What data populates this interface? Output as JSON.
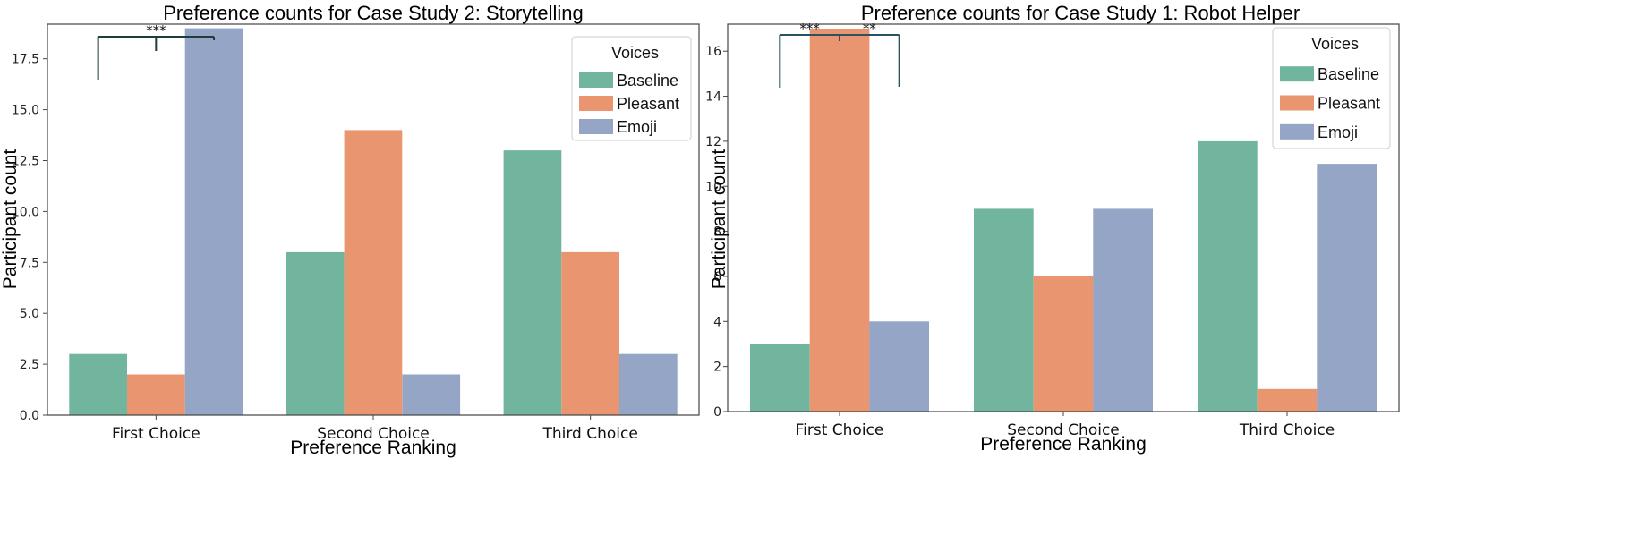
{
  "chart_data": [
    {
      "type": "bar",
      "title": "Preference counts for Case Study 2: Storytelling",
      "xlabel": "Preference Ranking",
      "ylabel": "Participant count",
      "categories": [
        "First Choice",
        "Second Choice",
        "Third Choice"
      ],
      "series": [
        {
          "name": "Baseline",
          "values": [
            3,
            8,
            13
          ],
          "color": "#72b59f"
        },
        {
          "name": "Pleasant",
          "values": [
            2,
            14,
            8
          ],
          "color": "#e9956f"
        },
        {
          "name": "Emoji",
          "values": [
            19,
            2,
            3
          ],
          "color": "#95a5c6"
        }
      ],
      "ylim": [
        0,
        19.2
      ],
      "yticks": [
        "0.0",
        "2.5",
        "5.0",
        "7.5",
        "10.0",
        "12.5",
        "15.0",
        "17.5"
      ],
      "legend": {
        "title": "Voices",
        "placement": "top-right"
      },
      "grid": false,
      "annotations": [
        {
          "text": "***",
          "between": [
            "Baseline",
            "Emoji"
          ],
          "category": "First Choice"
        }
      ]
    },
    {
      "type": "bar",
      "title": "Preference counts for Case Study 1: Robot Helper",
      "xlabel": "Preference Ranking",
      "ylabel": "Participant count",
      "categories": [
        "First Choice",
        "Second Choice",
        "Third Choice"
      ],
      "series": [
        {
          "name": "Baseline",
          "values": [
            3,
            9,
            12
          ],
          "color": "#72b59f"
        },
        {
          "name": "Pleasant",
          "values": [
            17,
            6,
            1
          ],
          "color": "#e9956f"
        },
        {
          "name": "Emoji",
          "values": [
            4,
            9,
            11
          ],
          "color": "#95a5c6"
        }
      ],
      "ylim": [
        0,
        17.2
      ],
      "yticks": [
        "0",
        "2",
        "4",
        "6",
        "8",
        "10",
        "12",
        "14",
        "16"
      ],
      "legend": {
        "title": "Voices",
        "placement": "top-right"
      },
      "grid": false,
      "annotations": [
        {
          "text": "***",
          "between": [
            "Baseline",
            "Pleasant"
          ],
          "category": "First Choice"
        },
        {
          "text": "**",
          "between": [
            "Pleasant",
            "Emoji"
          ],
          "category": "First Choice"
        }
      ]
    }
  ]
}
